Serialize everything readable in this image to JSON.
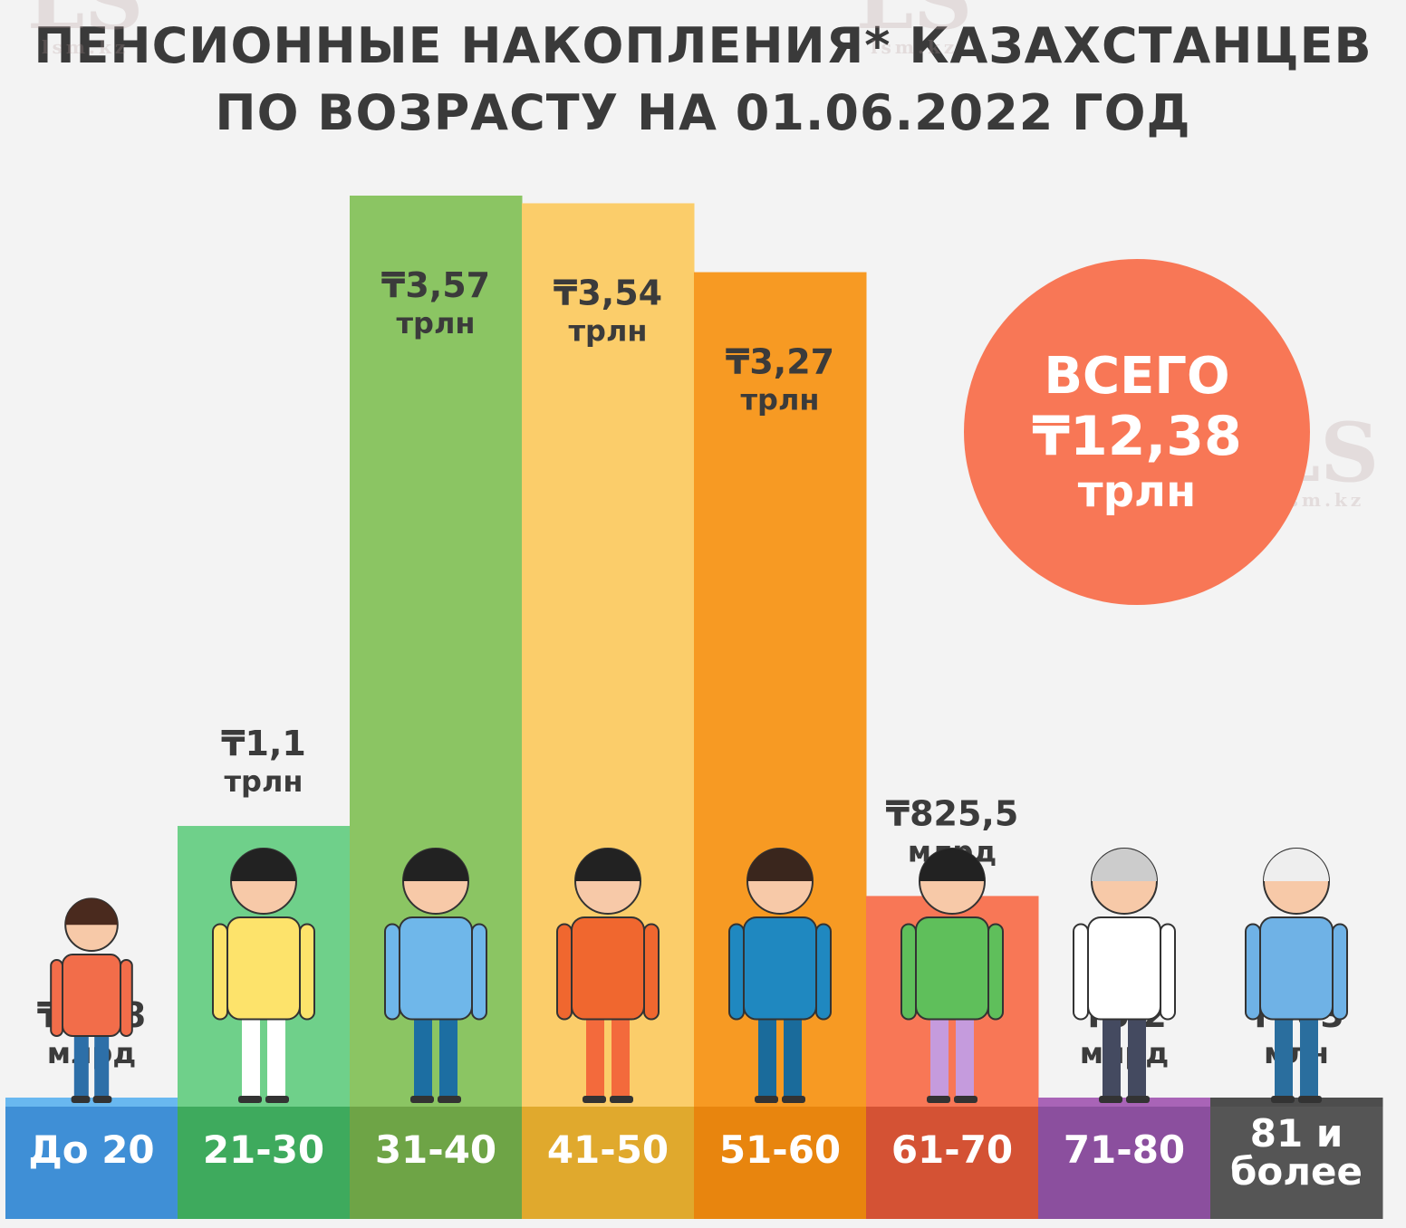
{
  "title": {
    "line1": "ПЕНСИОННЫЕ НАКОПЛЕНИЯ* КАЗАХСТАНЦЕВ",
    "line2": "ПО ВОЗРАСТУ НА 01.06.2022 ГОД"
  },
  "total": {
    "label": "ВСЕГО",
    "value": "₸12,38",
    "unit": "трлн",
    "color": "#f87756"
  },
  "watermark": {
    "logo": "LS",
    "site": "lsm.kz"
  },
  "chart_data": {
    "type": "bar",
    "categories": [
      "До 20",
      "21-30",
      "31-40",
      "41-50",
      "51-60",
      "61-70",
      "71-80",
      "81 и более"
    ],
    "value_labels": [
      [
        "₸17,8",
        "млрд"
      ],
      [
        "₸1,1",
        "трлн"
      ],
      [
        "₸3,57",
        "трлн"
      ],
      [
        "₸3,54",
        "трлн"
      ],
      [
        "₸3,27",
        "трлн"
      ],
      [
        "₸825,5",
        "млрд"
      ],
      [
        "₸5,2",
        "млрд"
      ],
      [
        "₸903",
        "млн"
      ]
    ],
    "values_trln": [
      0.0178,
      1.1,
      3.57,
      3.54,
      3.27,
      0.8255,
      0.0052,
      0.000903
    ],
    "bar_colors": [
      "#69b8f0",
      "#6fd08a",
      "#8bc563",
      "#fbcd6a",
      "#f79a23",
      "#f87756",
      "#a964b7",
      "#4d4d4d"
    ],
    "label_colors": [
      "#3f8fd6",
      "#3eaa5d",
      "#6ea446",
      "#e0a92d",
      "#e8850e",
      "#d45234",
      "#8b4f9e",
      "#555555"
    ],
    "persons": [
      "boy",
      "girl",
      "young-man",
      "woman",
      "bearded-man",
      "senior-woman",
      "grandmother",
      "grandfather"
    ]
  }
}
